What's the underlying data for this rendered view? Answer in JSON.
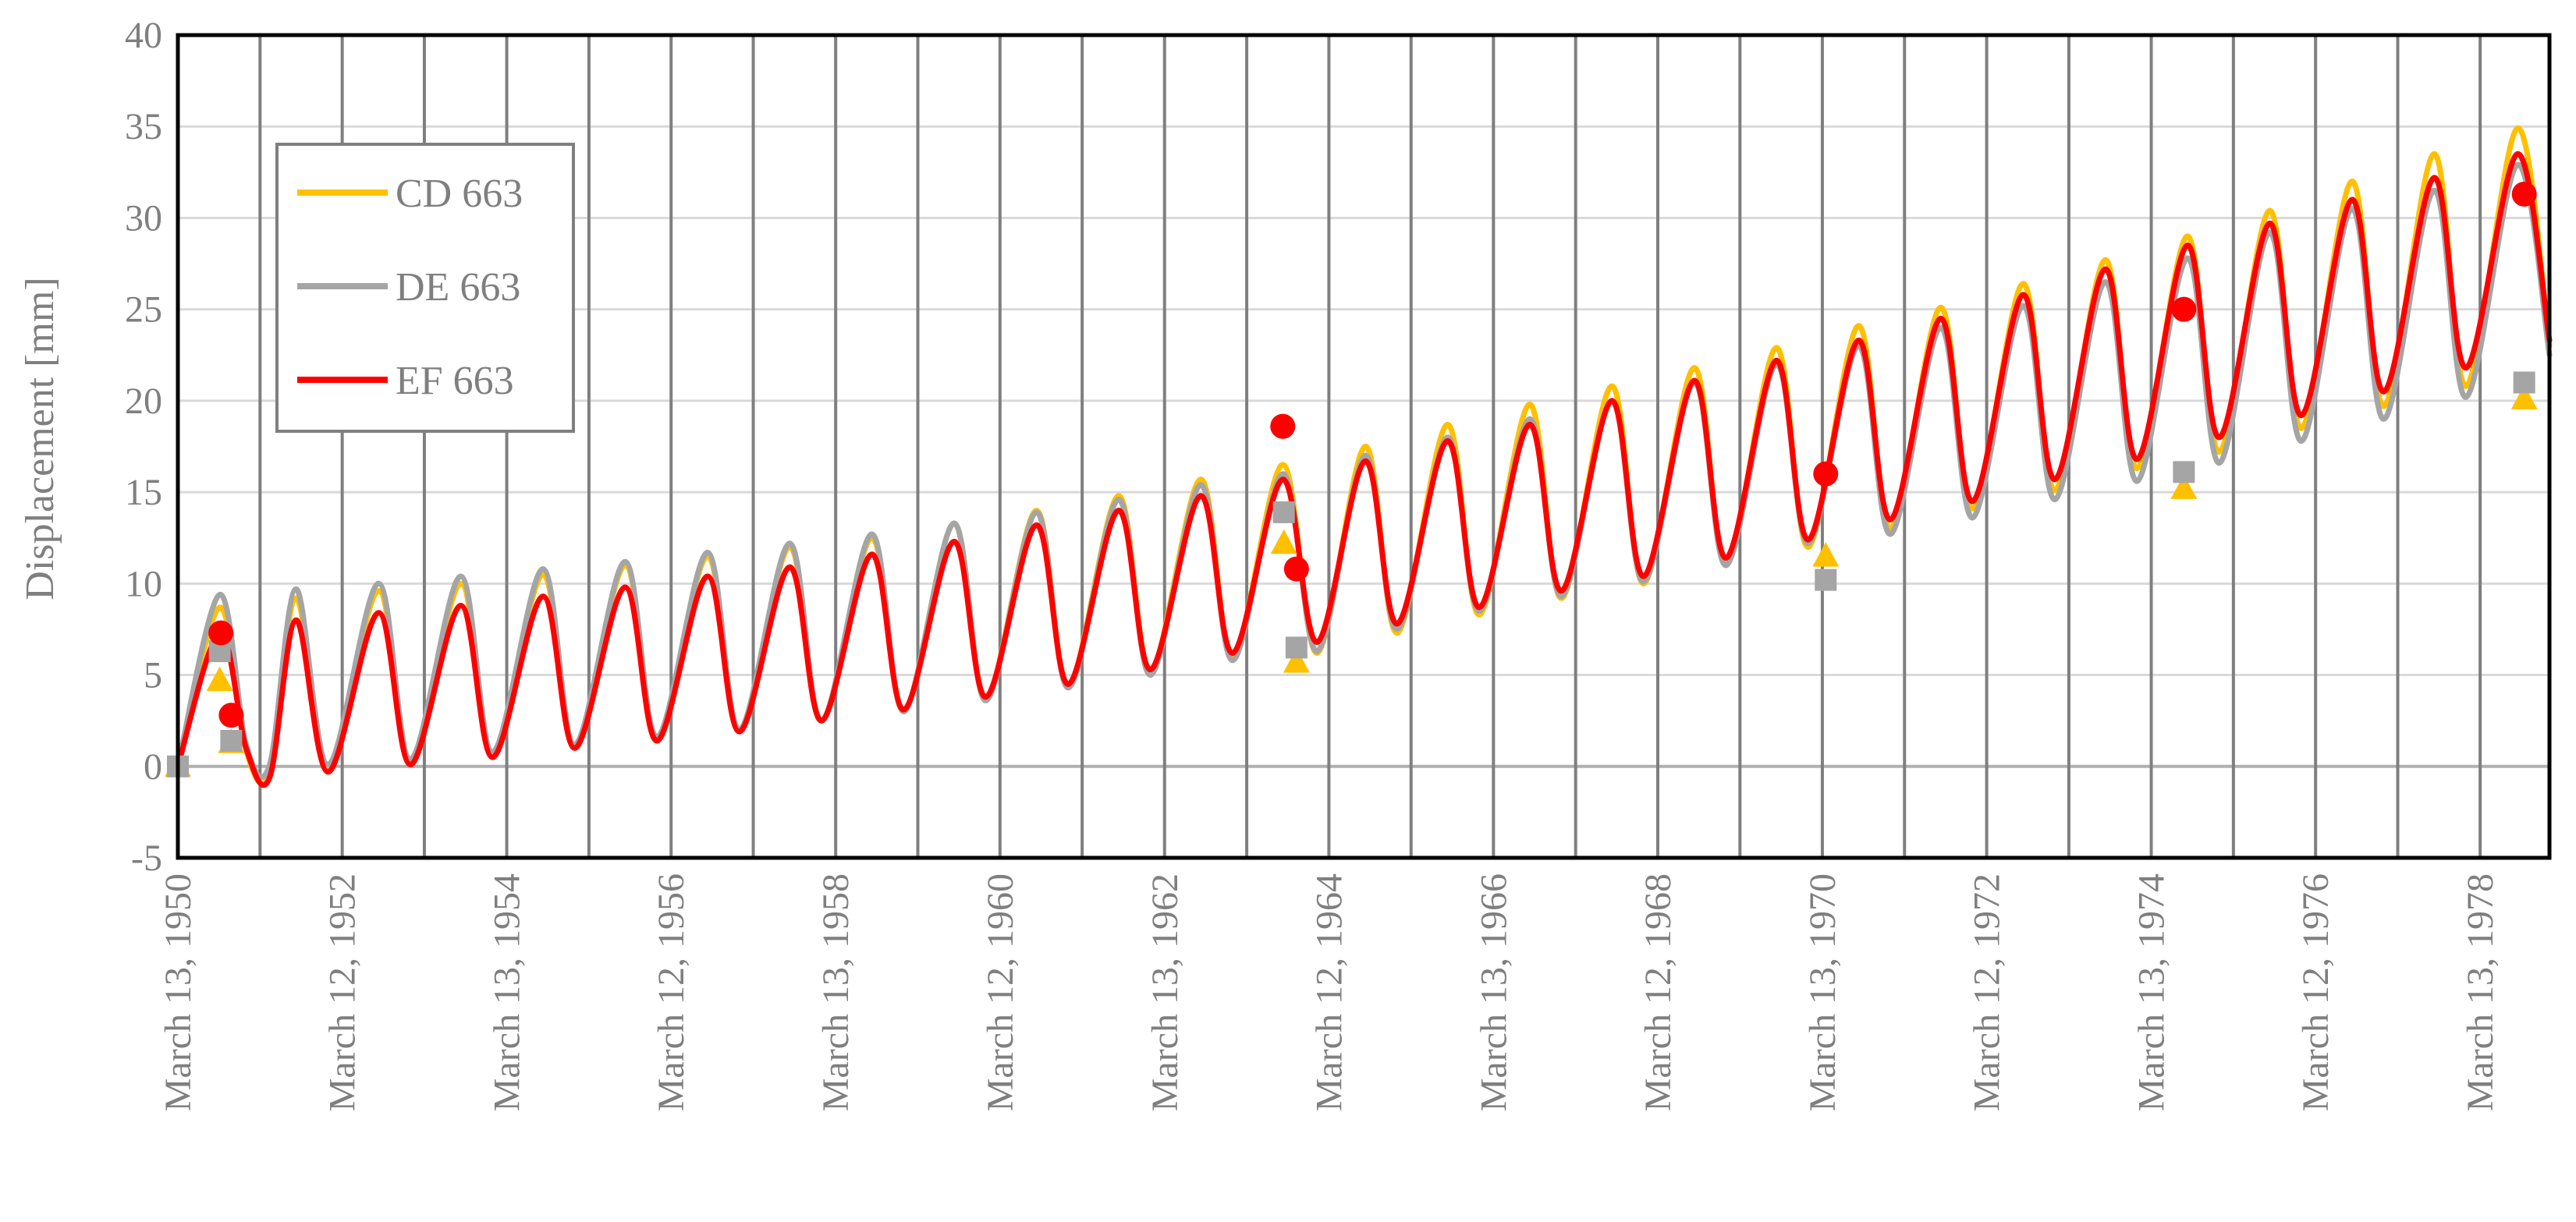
{
  "chart_data": {
    "type": "line",
    "title": "",
    "xlabel": "",
    "ylabel": "Displacement [mm]",
    "ylim": [
      -5,
      40
    ],
    "yticks": [
      -5,
      0,
      5,
      10,
      15,
      20,
      25,
      30,
      35,
      40
    ],
    "xlim": [
      "1950-03-13",
      "1979-01-15"
    ],
    "xticks": [
      "1950-03-13",
      "1951-03-13",
      "1952-03-12",
      "1953-03-12",
      "1954-03-13",
      "1955-03-13",
      "1956-03-12",
      "1957-03-12",
      "1958-03-13",
      "1959-03-13",
      "1960-03-12",
      "1961-03-12",
      "1962-03-13",
      "1963-03-13",
      "1964-03-12",
      "1965-03-12",
      "1966-03-13",
      "1967-03-13",
      "1968-03-12",
      "1969-03-12",
      "1970-03-13",
      "1971-03-13",
      "1972-03-12",
      "1973-03-12",
      "1974-03-13",
      "1975-03-13",
      "1976-03-12",
      "1977-03-12",
      "1978-03-13"
    ],
    "xtick_labels": [
      "March 13, 1950",
      "March 12, 1952",
      "March 13, 1954",
      "March 12, 1956",
      "March 13, 1958",
      "March 12, 1960",
      "March 13, 1962",
      "March 12, 1964",
      "March 13, 1966",
      "March 12, 1968",
      "March 13, 1970",
      "March 12, 1972",
      "March 13, 1974",
      "March 12, 1976",
      "March 13, 1978"
    ],
    "xtick_label_dates": [
      "1950-03-13",
      "1952-03-12",
      "1954-03-13",
      "1956-03-12",
      "1958-03-13",
      "1960-03-12",
      "1962-03-13",
      "1964-03-12",
      "1966-03-13",
      "1968-03-12",
      "1970-03-13",
      "1972-03-12",
      "1974-03-13",
      "1976-03-12",
      "1978-03-13"
    ],
    "grid": true,
    "legend_position": "top-left",
    "series": [
      {
        "name": "CD 663",
        "color": "#ffc000",
        "marker": "triangle",
        "x": [
          "1950-03-13",
          "1950-09-15",
          "1951-01-10",
          "1951-04-25",
          "1951-08-20",
          "1952-01-10",
          "1952-08-20",
          "1953-01-10",
          "1953-08-20",
          "1954-01-10",
          "1954-08-20",
          "1955-01-10",
          "1955-08-20",
          "1956-01-10",
          "1956-08-20",
          "1957-01-10",
          "1957-08-20",
          "1958-01-10",
          "1958-08-20",
          "1959-01-10",
          "1959-08-20",
          "1960-01-10",
          "1960-08-20",
          "1961-01-10",
          "1961-08-20",
          "1962-01-10",
          "1962-08-20",
          "1963-01-10",
          "1963-08-20",
          "1964-01-20",
          "1964-08-20",
          "1965-01-10",
          "1965-08-20",
          "1966-01-10",
          "1966-08-20",
          "1967-01-10",
          "1967-08-20",
          "1968-01-10",
          "1968-08-20",
          "1969-01-10",
          "1969-08-20",
          "1970-01-10",
          "1970-08-20",
          "1971-01-10",
          "1971-08-20",
          "1972-01-10",
          "1972-08-20",
          "1973-01-10",
          "1973-08-20",
          "1974-01-10",
          "1974-08-20",
          "1975-01-10",
          "1975-08-20",
          "1976-01-10",
          "1976-08-20",
          "1977-01-10",
          "1977-08-20",
          "1978-01-10",
          "1978-08-25",
          "1979-01-15"
        ],
        "values": [
          0,
          8.7,
          0.9,
          -0.3,
          9.2,
          -0.1,
          9.6,
          0.2,
          10.0,
          0.6,
          10.5,
          1.1,
          11.0,
          1.5,
          11.5,
          2.0,
          12.0,
          2.5,
          12.5,
          3.0,
          13.3,
          3.7,
          14.0,
          4.4,
          14.8,
          5.2,
          15.7,
          6.0,
          16.5,
          6.2,
          17.5,
          7.3,
          18.7,
          8.3,
          19.8,
          9.2,
          20.8,
          10.0,
          21.8,
          11.0,
          22.9,
          12.0,
          24.1,
          13.0,
          25.1,
          14.1,
          26.4,
          15.1,
          27.7,
          16.3,
          29.0,
          17.2,
          30.4,
          18.5,
          32.0,
          19.7,
          33.5,
          20.8,
          34.9,
          23.0
        ],
        "points": {
          "x": [
            "1950-03-13",
            "1950-09-15",
            "1950-11-05",
            "1963-08-25",
            "1963-10-20",
            "1970-03-28",
            "1974-08-05",
            "1978-09-25"
          ],
          "values": [
            0,
            4.7,
            1.3,
            12.2,
            5.7,
            11.5,
            15.2,
            20.1
          ]
        }
      },
      {
        "name": "DE 663",
        "color": "#a5a5a5",
        "marker": "square",
        "x": [
          "1950-03-13",
          "1950-09-15",
          "1951-01-10",
          "1951-04-25",
          "1951-08-20",
          "1952-01-10",
          "1952-08-20",
          "1953-01-10",
          "1953-08-20",
          "1954-01-10",
          "1954-08-20",
          "1955-01-10",
          "1955-08-20",
          "1956-01-10",
          "1956-08-20",
          "1957-01-10",
          "1957-08-20",
          "1958-01-10",
          "1958-08-20",
          "1959-01-10",
          "1959-08-20",
          "1960-01-10",
          "1960-08-20",
          "1961-01-10",
          "1961-08-20",
          "1962-01-10",
          "1962-08-20",
          "1963-01-10",
          "1963-08-20",
          "1964-01-20",
          "1964-08-20",
          "1965-01-10",
          "1965-08-20",
          "1966-01-10",
          "1966-08-20",
          "1967-01-10",
          "1967-08-20",
          "1968-01-10",
          "1968-08-20",
          "1969-01-10",
          "1969-08-20",
          "1970-01-10",
          "1970-08-20",
          "1971-01-10",
          "1971-08-20",
          "1972-01-10",
          "1972-08-20",
          "1973-01-10",
          "1973-08-20",
          "1974-01-10",
          "1974-08-20",
          "1975-01-10",
          "1975-08-20",
          "1976-01-10",
          "1976-08-20",
          "1977-01-10",
          "1977-08-20",
          "1978-01-10",
          "1978-08-25",
          "1979-01-15"
        ],
        "values": [
          0,
          9.4,
          1.2,
          0.1,
          9.7,
          0.1,
          10.0,
          0.4,
          10.4,
          0.8,
          10.8,
          1.2,
          11.2,
          1.6,
          11.7,
          2.0,
          12.2,
          2.5,
          12.7,
          3.0,
          13.3,
          3.6,
          13.9,
          4.3,
          14.6,
          5.0,
          15.4,
          5.8,
          16.0,
          6.3,
          17.0,
          7.5,
          18.0,
          8.5,
          19.0,
          9.3,
          20.0,
          10.1,
          21.0,
          11.0,
          22.0,
          12.2,
          23.0,
          12.7,
          24.0,
          13.6,
          25.2,
          14.6,
          26.5,
          15.6,
          27.8,
          16.6,
          29.2,
          17.8,
          30.5,
          19.0,
          31.5,
          20.2,
          32.9,
          22.5
        ],
        "points": {
          "x": [
            "1950-03-13",
            "1950-09-15",
            "1950-11-05",
            "1963-08-25",
            "1963-10-20",
            "1970-03-28",
            "1974-08-05",
            "1978-09-25"
          ],
          "values": [
            0,
            6.3,
            1.4,
            13.9,
            6.5,
            10.2,
            16.1,
            21.0
          ]
        }
      },
      {
        "name": "EF 663",
        "color": "#ff0000",
        "marker": "circle",
        "x": [
          "1950-03-13",
          "1950-09-15",
          "1951-01-10",
          "1951-04-25",
          "1951-08-20",
          "1952-01-10",
          "1952-08-20",
          "1953-01-10",
          "1953-08-20",
          "1954-01-10",
          "1954-08-20",
          "1955-01-10",
          "1955-08-20",
          "1956-01-10",
          "1956-08-20",
          "1957-01-10",
          "1957-08-20",
          "1958-01-10",
          "1958-08-20",
          "1959-01-10",
          "1959-08-20",
          "1960-01-10",
          "1960-08-20",
          "1961-01-10",
          "1961-08-20",
          "1962-01-10",
          "1962-08-20",
          "1963-01-10",
          "1963-08-20",
          "1964-01-20",
          "1964-08-20",
          "1965-01-10",
          "1965-08-20",
          "1966-01-10",
          "1966-08-20",
          "1967-01-10",
          "1967-08-20",
          "1968-01-10",
          "1968-08-20",
          "1969-01-10",
          "1969-08-20",
          "1970-01-10",
          "1970-08-20",
          "1971-01-10",
          "1971-08-20",
          "1972-01-10",
          "1972-08-20",
          "1973-01-10",
          "1973-08-20",
          "1974-01-10",
          "1974-08-20",
          "1975-01-10",
          "1975-08-20",
          "1976-01-10",
          "1976-08-20",
          "1977-01-10",
          "1977-08-20",
          "1978-01-10",
          "1978-08-25",
          "1979-01-15"
        ],
        "values": [
          0,
          7.3,
          1.0,
          -0.6,
          8.0,
          -0.3,
          8.4,
          0.1,
          8.8,
          0.5,
          9.3,
          1.0,
          9.8,
          1.4,
          10.4,
          1.9,
          10.9,
          2.5,
          11.6,
          3.1,
          12.3,
          3.8,
          13.2,
          4.5,
          14.0,
          5.3,
          14.8,
          6.2,
          15.7,
          6.8,
          16.7,
          7.8,
          17.8,
          8.7,
          18.7,
          9.6,
          20.0,
          10.4,
          21.1,
          11.4,
          22.2,
          12.4,
          23.3,
          13.5,
          24.5,
          14.5,
          25.8,
          15.7,
          27.2,
          16.8,
          28.5,
          18.0,
          29.7,
          19.2,
          31.0,
          20.5,
          32.2,
          21.8,
          33.5,
          23.3
        ],
        "points": {
          "x": [
            "1950-09-20",
            "1950-11-05",
            "1963-08-20",
            "1963-10-20",
            "1970-03-28",
            "1974-08-05",
            "1978-09-25"
          ],
          "values": [
            7.3,
            2.8,
            18.6,
            10.8,
            16.0,
            25.0,
            31.3
          ]
        }
      }
    ]
  }
}
